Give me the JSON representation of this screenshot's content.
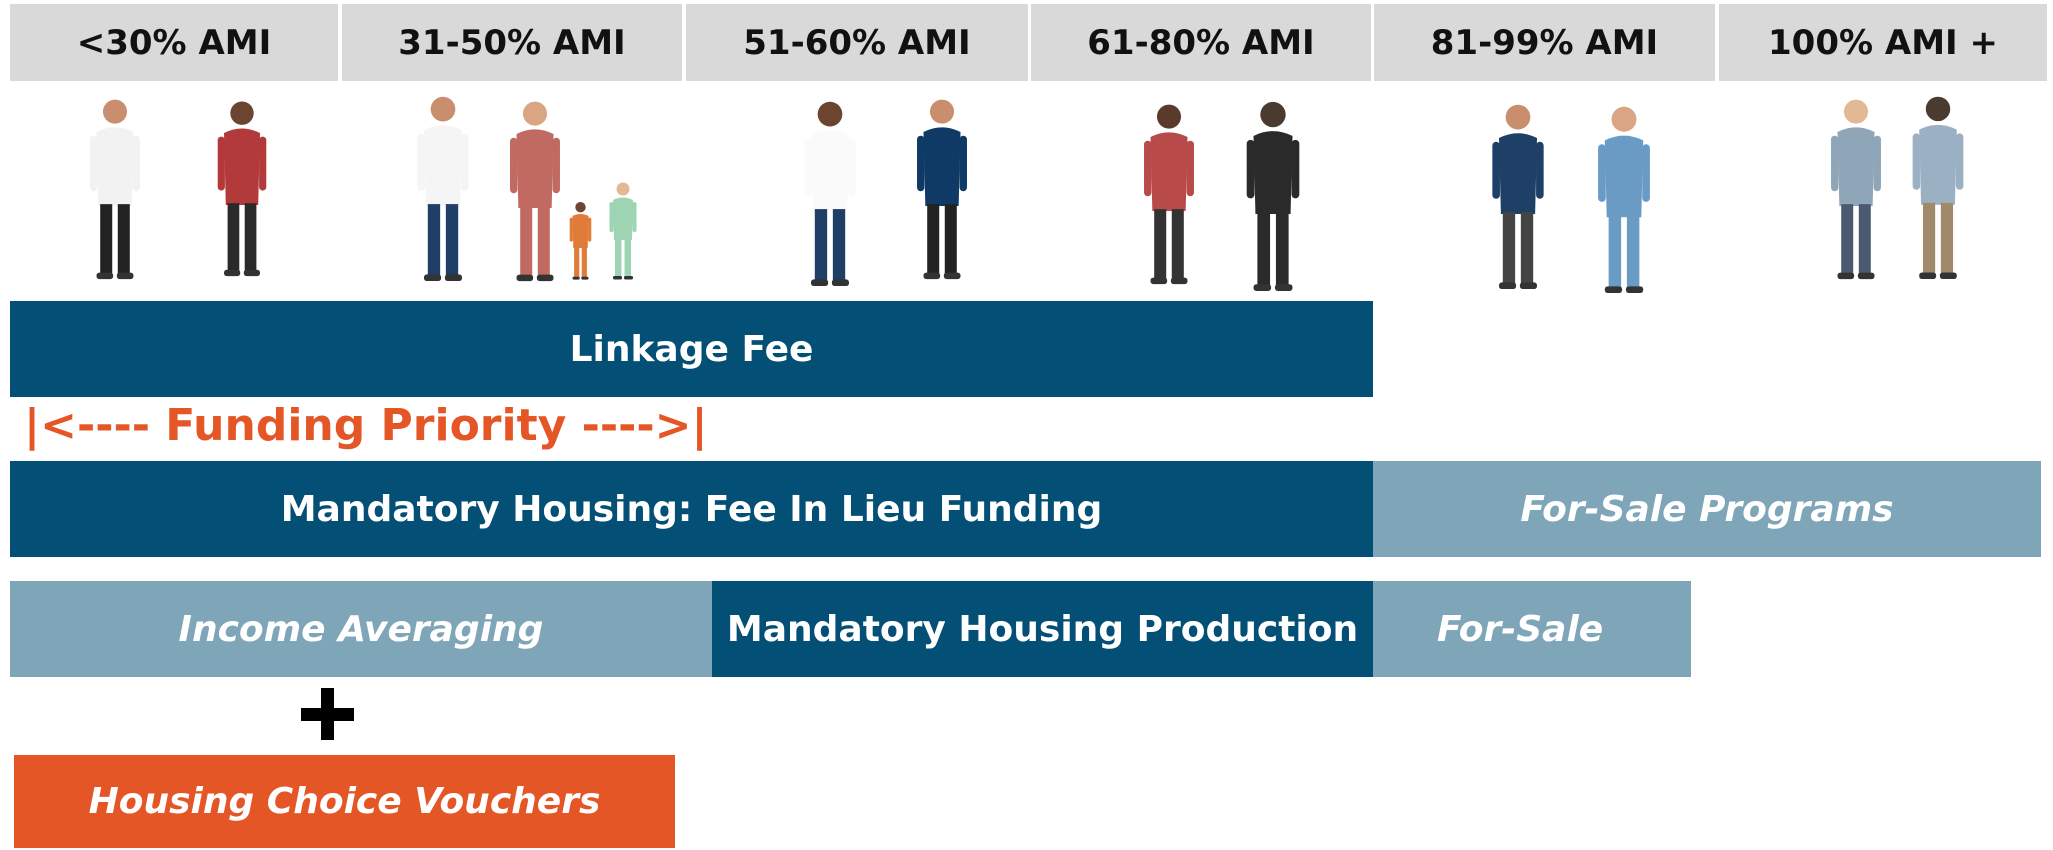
{
  "columns": [
    "<30% AMI",
    "31-50% AMI",
    "51-60% AMI",
    "61-80% AMI",
    "81-99% AMI",
    "100% AMI +"
  ],
  "funding_priority": "|<---- Funding Priority ---->|",
  "bars": [
    {
      "label": "Linkage Fee"
    },
    {
      "label": "Mandatory Housing: Fee In Lieu Funding"
    },
    {
      "label": "For-Sale Programs"
    },
    {
      "label": "Income Averaging"
    },
    {
      "label": "Mandatory Housing Production"
    },
    {
      "label": "For-Sale"
    },
    {
      "label": "Housing Choice Vouchers"
    }
  ]
}
